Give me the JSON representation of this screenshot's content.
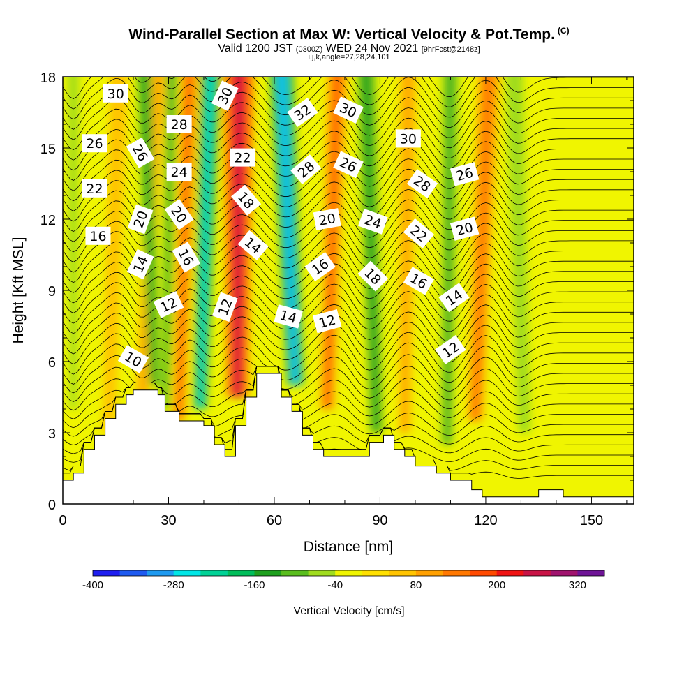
{
  "header": {
    "title": "Wind-Parallel Section at Max W: Vertical Velocity & Pot.Temp.",
    "copyright": "(C)",
    "valid_main_a": "Valid 1200 JST",
    "valid_utc": "(0300Z)",
    "valid_main_b": "WED 24 Nov 2021",
    "forecast": "[9hrFcst@2148z]",
    "grid_info": "i,j,k,angle=27,28,24,101"
  },
  "chart_data": {
    "type": "heatmap",
    "xlabel": "Distance [nm]",
    "ylabel": "Height [Kft MSL]",
    "xlim": [
      0,
      162
    ],
    "ylim": [
      0,
      18
    ],
    "x_ticks": [
      0,
      30,
      60,
      90,
      120,
      150
    ],
    "y_ticks": [
      0,
      3,
      6,
      9,
      12,
      15,
      18
    ],
    "grid": false,
    "colorbar": {
      "title": "Vertical Velocity [cm/s]",
      "levels": [
        -400,
        -360,
        -320,
        -280,
        -240,
        -200,
        -160,
        -120,
        -80,
        -40,
        0,
        40,
        80,
        120,
        160,
        200,
        240,
        280,
        320,
        360
      ],
      "tick_labels": [
        "-400",
        "-280",
        "-160",
        "-40",
        "80",
        "200",
        "320"
      ],
      "colors": [
        "#1e1ef0",
        "#1e5af0",
        "#1e9af0",
        "#00e6e6",
        "#00d296",
        "#00be5a",
        "#1ea01e",
        "#5abe1e",
        "#a0dc1e",
        "#f0f500",
        "#ffe000",
        "#ffc400",
        "#ffa000",
        "#ff7800",
        "#ff4a00",
        "#f01414",
        "#c81446",
        "#a0146e",
        "#6e1496"
      ]
    },
    "terrain_kft": [
      {
        "x": 0,
        "h": 1.0
      },
      {
        "x": 3,
        "h": 1.3
      },
      {
        "x": 6,
        "h": 2.3
      },
      {
        "x": 9,
        "h": 2.9
      },
      {
        "x": 12,
        "h": 3.6
      },
      {
        "x": 15,
        "h": 4.2
      },
      {
        "x": 18,
        "h": 4.6
      },
      {
        "x": 20,
        "h": 4.8
      },
      {
        "x": 26,
        "h": 4.8
      },
      {
        "x": 27,
        "h": 4.6
      },
      {
        "x": 29,
        "h": 3.9
      },
      {
        "x": 33,
        "h": 3.5
      },
      {
        "x": 36,
        "h": 3.5
      },
      {
        "x": 40,
        "h": 3.3
      },
      {
        "x": 43,
        "h": 2.5
      },
      {
        "x": 46,
        "h": 2.0
      },
      {
        "x": 49,
        "h": 3.3
      },
      {
        "x": 52,
        "h": 4.5
      },
      {
        "x": 55,
        "h": 5.5
      },
      {
        "x": 61,
        "h": 5.5
      },
      {
        "x": 62,
        "h": 4.5
      },
      {
        "x": 65,
        "h": 3.9
      },
      {
        "x": 68,
        "h": 2.9
      },
      {
        "x": 71,
        "h": 2.3
      },
      {
        "x": 74,
        "h": 2.0
      },
      {
        "x": 84,
        "h": 2.0
      },
      {
        "x": 87,
        "h": 2.6
      },
      {
        "x": 91,
        "h": 2.9
      },
      {
        "x": 94,
        "h": 2.3
      },
      {
        "x": 97,
        "h": 2.0
      },
      {
        "x": 100,
        "h": 1.6
      },
      {
        "x": 106,
        "h": 1.3
      },
      {
        "x": 110,
        "h": 1.0
      },
      {
        "x": 116,
        "h": 0.6
      },
      {
        "x": 119,
        "h": 0.3
      },
      {
        "x": 134,
        "h": 0.3
      },
      {
        "x": 135,
        "h": 0.6
      },
      {
        "x": 141,
        "h": 0.6
      },
      {
        "x": 142,
        "h": 0.3
      },
      {
        "x": 162,
        "h": 0.3
      }
    ],
    "updraft_bands": [
      {
        "x_top": 50,
        "x_bottom": 49.5,
        "w": 260,
        "width": 4.5,
        "min_h": 4.5
      },
      {
        "x_top": 36,
        "x_bottom": 33,
        "w": 160,
        "width": 2.5,
        "min_h": 3.5
      },
      {
        "x_top": 27,
        "x_bottom": 22,
        "w": 100,
        "width": 2.5,
        "min_h": 3.0
      },
      {
        "x_top": 78,
        "x_bottom": 75,
        "w": 160,
        "width": 3.0,
        "min_h": 4.0
      },
      {
        "x_top": 98,
        "x_bottom": 97,
        "w": 100,
        "width": 2.5,
        "min_h": 3.0
      },
      {
        "x_top": 121,
        "x_bottom": 117,
        "w": 150,
        "width": 3.2,
        "min_h": 3.5
      },
      {
        "x_top": 16,
        "x_bottom": 13,
        "w": 70,
        "width": 2.5,
        "min_h": 3.0
      }
    ],
    "downdraft_bands": [
      {
        "x_top": 62,
        "x_bottom": 66,
        "w": -320,
        "width": 3.5,
        "min_h": 5.0
      },
      {
        "x_top": 42,
        "x_bottom": 39,
        "w": -260,
        "width": 2.8,
        "min_h": 4.0
      },
      {
        "x_top": 23,
        "x_bottom": 26,
        "w": -160,
        "width": 2.2,
        "min_h": 5.0
      },
      {
        "x_top": 31,
        "x_bottom": 29,
        "w": -140,
        "width": 1.8,
        "min_h": 4.0
      },
      {
        "x_top": 86,
        "x_bottom": 89,
        "w": -160,
        "width": 2.8,
        "min_h": 3.0
      },
      {
        "x_top": 110,
        "x_bottom": 109,
        "w": -130,
        "width": 2.5,
        "min_h": 2.5
      },
      {
        "x_top": 128,
        "x_bottom": 131,
        "w": -80,
        "width": 2.5,
        "min_h": 3.0
      },
      {
        "x_top": 3,
        "x_bottom": 3,
        "w": -50,
        "width": 1.5,
        "min_h": 4.0
      }
    ],
    "contour_labels": [
      {
        "text": "30",
        "x": 15,
        "y": 17.3,
        "angle": 0
      },
      {
        "text": "26",
        "x": 9,
        "y": 15.2,
        "angle": 0
      },
      {
        "text": "22",
        "x": 9,
        "y": 13.3,
        "angle": 0
      },
      {
        "text": "16",
        "x": 10,
        "y": 11.3,
        "angle": 0
      },
      {
        "text": "10",
        "x": 20,
        "y": 6.1,
        "angle": 30
      },
      {
        "text": "14",
        "x": 22,
        "y": 10.1,
        "angle": -65
      },
      {
        "text": "20",
        "x": 22,
        "y": 12.0,
        "angle": -70
      },
      {
        "text": "26",
        "x": 22,
        "y": 14.8,
        "angle": 60
      },
      {
        "text": "28",
        "x": 33,
        "y": 16.0,
        "angle": 0
      },
      {
        "text": "24",
        "x": 33,
        "y": 14.0,
        "angle": 0
      },
      {
        "text": "20",
        "x": 33,
        "y": 12.2,
        "angle": 55
      },
      {
        "text": "16",
        "x": 35,
        "y": 10.4,
        "angle": 60
      },
      {
        "text": "12",
        "x": 30,
        "y": 8.4,
        "angle": -25
      },
      {
        "text": "30",
        "x": 46,
        "y": 17.2,
        "angle": -65
      },
      {
        "text": "22",
        "x": 51,
        "y": 14.6,
        "angle": 0
      },
      {
        "text": "18",
        "x": 52,
        "y": 12.8,
        "angle": 50
      },
      {
        "text": "14",
        "x": 54,
        "y": 10.9,
        "angle": 40
      },
      {
        "text": "12",
        "x": 46,
        "y": 8.3,
        "angle": -70
      },
      {
        "text": "14",
        "x": 64,
        "y": 7.9,
        "angle": 15
      },
      {
        "text": "32",
        "x": 68,
        "y": 16.5,
        "angle": -35
      },
      {
        "text": "28",
        "x": 69,
        "y": 14.1,
        "angle": -40
      },
      {
        "text": "20",
        "x": 75,
        "y": 12.0,
        "angle": -10
      },
      {
        "text": "16",
        "x": 73,
        "y": 10.0,
        "angle": -35
      },
      {
        "text": "12",
        "x": 75,
        "y": 7.7,
        "angle": -15
      },
      {
        "text": "30",
        "x": 81,
        "y": 16.6,
        "angle": 25
      },
      {
        "text": "26",
        "x": 81,
        "y": 14.3,
        "angle": 25
      },
      {
        "text": "24",
        "x": 88,
        "y": 11.9,
        "angle": 20
      },
      {
        "text": "18",
        "x": 88,
        "y": 9.6,
        "angle": 45
      },
      {
        "text": "30",
        "x": 98,
        "y": 15.4,
        "angle": 0
      },
      {
        "text": "28",
        "x": 102,
        "y": 13.5,
        "angle": 35
      },
      {
        "text": "22",
        "x": 101,
        "y": 11.4,
        "angle": 40
      },
      {
        "text": "16",
        "x": 101,
        "y": 9.4,
        "angle": 30
      },
      {
        "text": "26",
        "x": 114,
        "y": 13.9,
        "angle": -15
      },
      {
        "text": "20",
        "x": 114,
        "y": 11.6,
        "angle": -15
      },
      {
        "text": "14",
        "x": 111,
        "y": 8.7,
        "angle": -35
      },
      {
        "text": "12",
        "x": 110,
        "y": 6.5,
        "angle": -35
      }
    ]
  }
}
